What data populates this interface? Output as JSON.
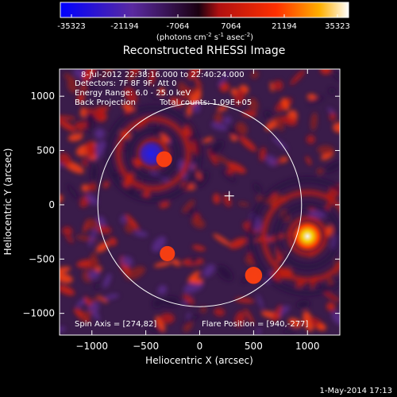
{
  "colorbar": {
    "ticks": [
      "-35323",
      "-21194",
      "-7064",
      "7064",
      "21194",
      "35323"
    ],
    "unit_prefix": "(photons cm",
    "unit_exp1": "-2",
    "unit_mid": " s",
    "unit_exp2": "-1",
    "unit_mid2": " asec",
    "unit_exp3": "-2",
    "unit_suffix": ")"
  },
  "info": {
    "time_range": "8-Jul-2012 22:38:16.000 to 22:40:24.000",
    "detectors": "Detectors: 7F 8F 9F, Att 0",
    "energy": "Energy Range: 6.0 - 25.0 keV",
    "method": "Back Projection",
    "counts": "Total counts: 1.09E+05",
    "spin_axis": "Spin Axis = [274,82]",
    "flare_position": "Flare Position = [940,-277]"
  },
  "footer": {
    "date": "1-May-2014 17:13"
  },
  "colors": {
    "background": "#000000",
    "axes": "#ffffff",
    "colormap": [
      "#0000ff",
      "#3a1aa0",
      "#5a2a7a",
      "#000000",
      "#b01010",
      "#ff3000",
      "#ffb000",
      "#ffffff"
    ]
  },
  "chart_data": {
    "type": "heatmap",
    "title": "Reconstructed RHESSI Image",
    "xlabel": "Heliocentric X (arcsec)",
    "ylabel": "Heliocentric Y (arcsec)",
    "xlim": [
      -1300,
      1300
    ],
    "ylim": [
      -1200,
      1250
    ],
    "xticks": [
      -1000,
      -500,
      0,
      500,
      1000
    ],
    "yticks": [
      -1000,
      -500,
      0,
      500,
      1000
    ],
    "xtick_labels": [
      "−1000",
      "−500",
      "0",
      "500",
      "1000"
    ],
    "ytick_labels": [
      "−1000",
      "−500",
      "0",
      "500",
      "1000"
    ],
    "colorbar_range": [
      -35323,
      35323
    ],
    "solar_limb_center": [
      0,
      0
    ],
    "solar_limb_radius": 945,
    "spin_axis": [
      274,
      82
    ],
    "flare_position": [
      940,
      -277
    ],
    "features": [
      {
        "x": -450,
        "y": 470,
        "value": -30000
      },
      {
        "x": -330,
        "y": 420,
        "value": 10000
      },
      {
        "x": 1000,
        "y": -290,
        "value": 35323
      },
      {
        "x": 500,
        "y": -650,
        "value": 12000
      },
      {
        "x": -300,
        "y": -450,
        "value": 9000
      }
    ],
    "grid": false
  }
}
